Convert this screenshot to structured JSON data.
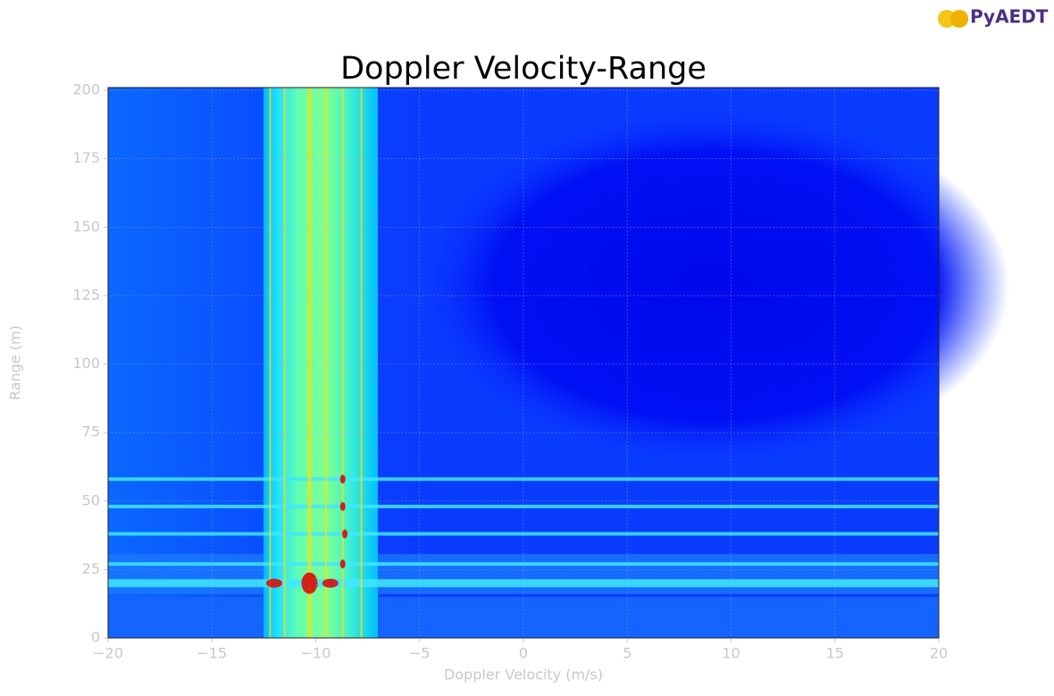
{
  "logo": "PyAEDT",
  "chart_data": {
    "type": "heatmap",
    "title": "Doppler Velocity-Range",
    "x_label": "Doppler Velocity (m/s)",
    "y_label": "Range (m)",
    "xlim": [
      -20,
      20
    ],
    "xticks": [
      {
        "value": -20,
        "label": "−20"
      },
      {
        "value": -15,
        "label": "−15"
      },
      {
        "value": -10,
        "label": "−10"
      },
      {
        "value": -5,
        "label": "−5"
      },
      0,
      5,
      10,
      15,
      20
    ],
    "ylim": [
      0,
      201
    ],
    "yticks": [
      0,
      25,
      50,
      75,
      100,
      125,
      150,
      175,
      200
    ],
    "grid": true,
    "horizontal_streaks": {
      "y": [
        20,
        27,
        38,
        48,
        58
      ],
      "color": "#40e8ff"
    },
    "vertical_streaks": {
      "x": [
        -12.2,
        -11.5,
        -10.3,
        -9.5,
        -8.7,
        -7.8
      ],
      "color": "#ffe000"
    },
    "peaks": {
      "x": [
        -12,
        -10.3,
        -9.3,
        -8.7,
        -8.7,
        -8.6,
        -8.7
      ],
      "y": [
        20,
        20,
        20,
        58,
        48,
        38,
        27
      ],
      "color": "#e00000"
    }
  }
}
